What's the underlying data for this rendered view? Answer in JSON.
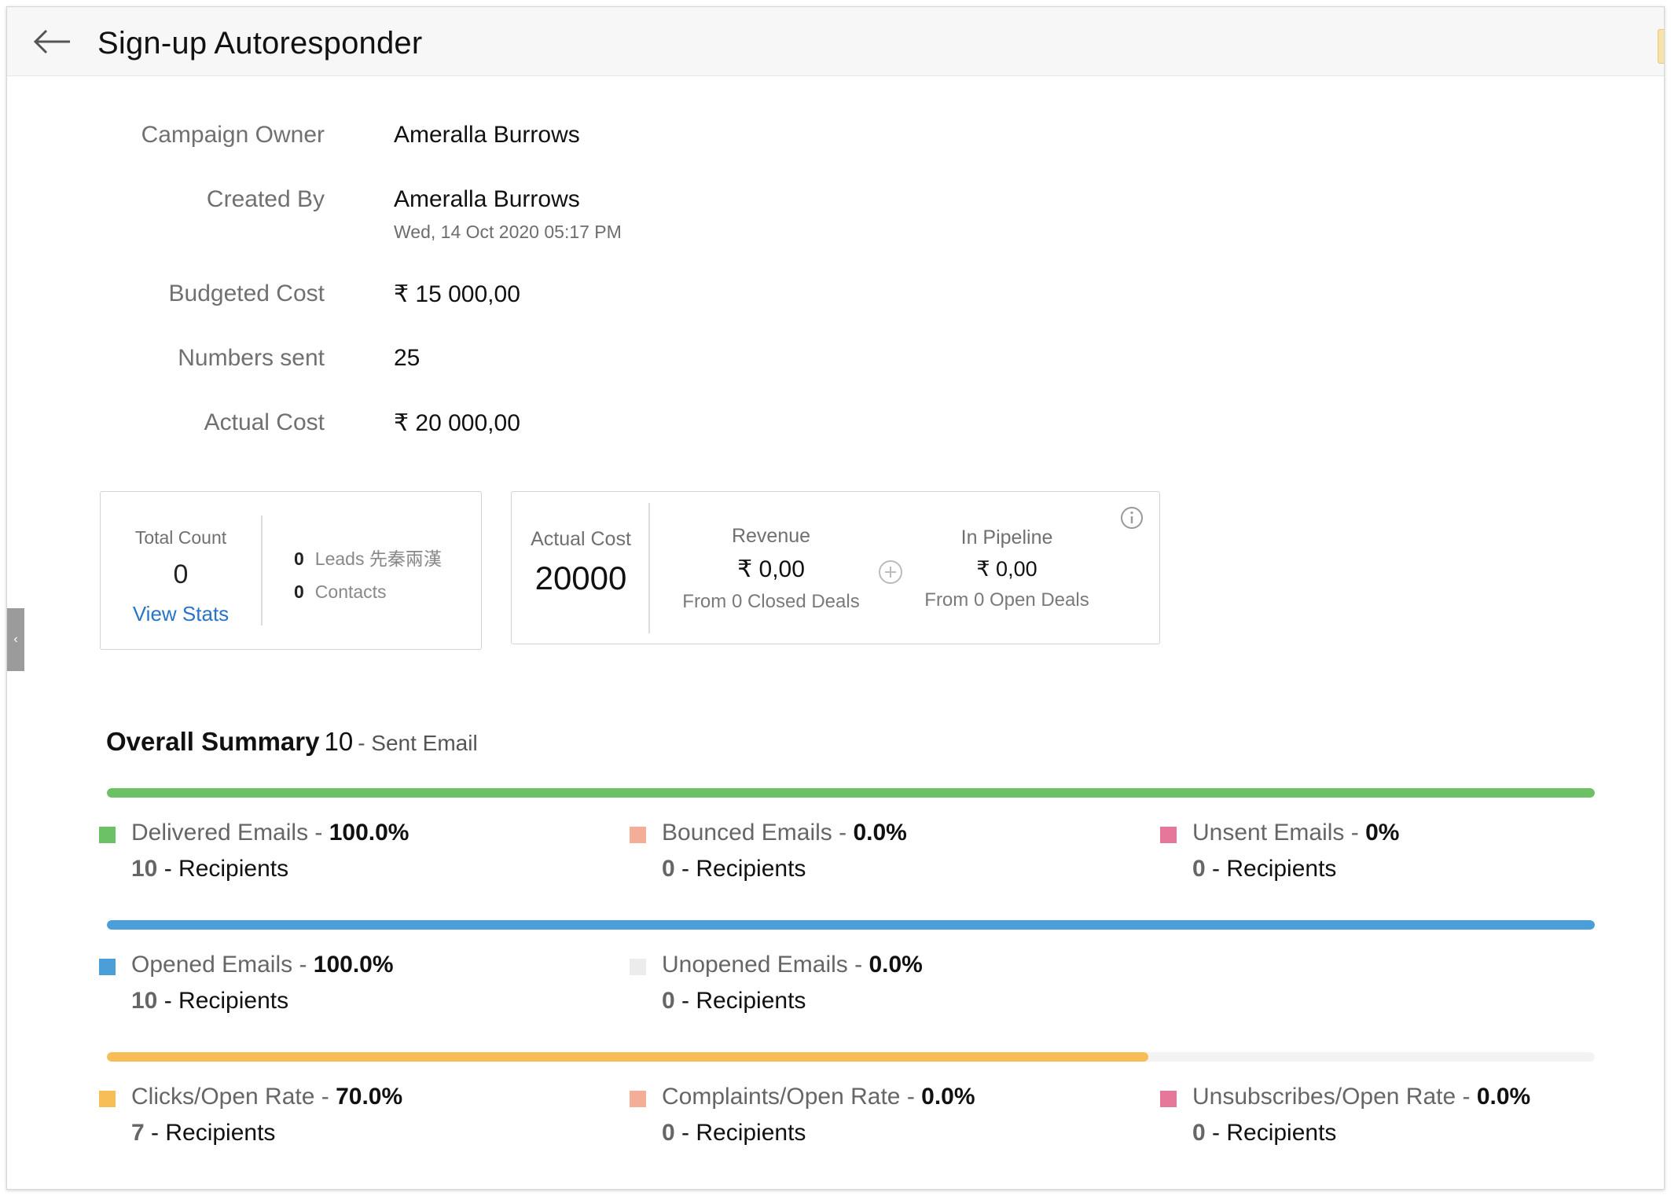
{
  "header": {
    "title": "Sign-up Autoresponder"
  },
  "details": {
    "owner": {
      "label": "Campaign Owner",
      "value": "Ameralla Burrows"
    },
    "created_by": {
      "label": "Created By",
      "value": "Ameralla Burrows",
      "date": "Wed, 14 Oct 2020 05:17 PM"
    },
    "budgeted_cost": {
      "label": "Budgeted Cost",
      "value": "₹ 15 000,00"
    },
    "numbers_sent": {
      "label": "Numbers sent",
      "value": "25"
    },
    "actual_cost": {
      "label": "Actual Cost",
      "value": "₹ 20 000,00"
    }
  },
  "total_card": {
    "label": "Total Count",
    "value": "0",
    "link": "View Stats",
    "leads": {
      "count": "0",
      "label": "Leads 先秦兩漢"
    },
    "contacts": {
      "count": "0",
      "label": "Contacts"
    }
  },
  "cost_card": {
    "actual_label": "Actual Cost",
    "actual_value": "20000",
    "revenue": {
      "label": "Revenue",
      "amount": "₹ 0,00",
      "sub": "From 0 Closed Deals"
    },
    "pipeline": {
      "label": "In Pipeline",
      "amount": "₹ 0,00",
      "sub": "From 0 Open Deals"
    }
  },
  "summary": {
    "title": "Overall Summary",
    "count": "10",
    "suffix": "- Sent Email",
    "recipients_word": "- Recipients",
    "bars": [
      {
        "color": "#6cc164",
        "fill": 1.0
      },
      {
        "color": "#4a9fd8",
        "fill": 1.0
      },
      {
        "color": "#f7be58",
        "fill": 0.7
      }
    ],
    "metrics": [
      {
        "label": "Delivered Emails - ",
        "value": "100.0%",
        "recipients": "10",
        "color": "#6cc164"
      },
      {
        "label": "Bounced Emails - ",
        "value": "0.0%",
        "recipients": "0",
        "color": "#f4ae98"
      },
      {
        "label": "Unsent Emails - ",
        "value": "0%",
        "recipients": "0",
        "color": "#e7779a"
      },
      {
        "label": "Opened Emails - ",
        "value": "100.0%",
        "recipients": "10",
        "color": "#4a9fd8"
      },
      {
        "label": "Unopened Emails - ",
        "value": "0.0%",
        "recipients": "0",
        "color": "#ececec"
      },
      {
        "label": "Clicks/Open Rate - ",
        "value": "70.0%",
        "recipients": "7",
        "color": "#f7be58"
      },
      {
        "label": "Complaints/Open Rate - ",
        "value": "0.0%",
        "recipients": "0",
        "color": "#f4ae98"
      },
      {
        "label": "Unsubscribes/Open Rate - ",
        "value": "0.0%",
        "recipients": "0",
        "color": "#e7779a"
      }
    ]
  }
}
